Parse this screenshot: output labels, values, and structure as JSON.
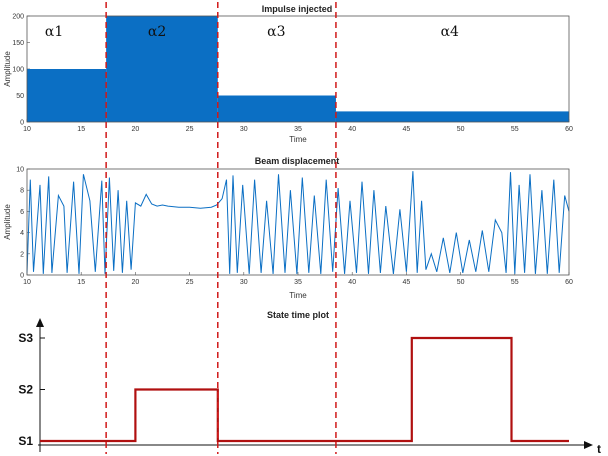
{
  "colors": {
    "signal": "#0b6fc4",
    "state": "#b01010",
    "divider": "#d01818",
    "axis": "#555555"
  },
  "chart_data": [
    {
      "type": "area",
      "title": "Impulse injected",
      "xlabel": "Time",
      "ylabel": "Amplitude",
      "xlim": [
        10,
        60
      ],
      "ylim": [
        0,
        200
      ],
      "xticks": [
        10,
        15,
        20,
        25,
        30,
        35,
        40,
        45,
        50,
        55,
        60
      ],
      "yticks": [
        0,
        50,
        100,
        150,
        200
      ],
      "series": [
        {
          "segments": [
            {
              "x0": 10,
              "x1": 17.3,
              "value": 100
            },
            {
              "x0": 17.3,
              "x1": 27.6,
              "value": 210
            },
            {
              "x0": 27.6,
              "x1": 38.5,
              "value": 50
            },
            {
              "x0": 38.5,
              "x1": 60,
              "value": 20
            }
          ]
        }
      ],
      "regions": [
        {
          "label": "α1",
          "x": 12.5
        },
        {
          "label": "α2",
          "x": 22
        },
        {
          "label": "α3",
          "x": 33
        },
        {
          "label": "α4",
          "x": 49
        }
      ]
    },
    {
      "type": "line",
      "title": "Beam displacement",
      "xlabel": "Time",
      "ylabel": "Amplitude",
      "xlim": [
        10,
        60
      ],
      "ylim": [
        0,
        10
      ],
      "xticks": [
        10,
        15,
        20,
        25,
        30,
        35,
        40,
        45,
        50,
        55,
        60
      ],
      "yticks": [
        0,
        2,
        4,
        6,
        8,
        10
      ],
      "series": [
        {
          "x": [
            10,
            10.3,
            10.6,
            11.2,
            11.5,
            12.0,
            12.3,
            12.9,
            13.4,
            13.7,
            14.3,
            14.8,
            15.2,
            15.8,
            16.3,
            16.9,
            17.2,
            17.6,
            18.0,
            18.4,
            18.8,
            19.2,
            19.6,
            20.0,
            20.5,
            21.0,
            21.5,
            22.0,
            22.5,
            23.0,
            24.0,
            25.0,
            26.0,
            27.0,
            27.5,
            28.0,
            28.4,
            28.7,
            29.0,
            29.4,
            29.9,
            30.5,
            31.0,
            31.6,
            32.1,
            32.7,
            33.2,
            33.8,
            34.3,
            34.9,
            35.4,
            36.0,
            36.5,
            37.1,
            37.6,
            38.2,
            38.7,
            39.3,
            39.8,
            40.4,
            40.9,
            41.5,
            42.0,
            42.6,
            43.1,
            43.8,
            44.4,
            45.0,
            45.6,
            46.0,
            46.4,
            46.8,
            47.3,
            47.8,
            48.4,
            49.0,
            49.6,
            50.2,
            50.8,
            51.4,
            52.0,
            52.6,
            53.2,
            53.8,
            54.2,
            54.6,
            55.0,
            55.4,
            55.9,
            56.4,
            56.9,
            57.5,
            58.0,
            58.6,
            59.1,
            59.6,
            60.0
          ],
          "values": [
            0.2,
            9.0,
            0.3,
            8.5,
            0.1,
            9.3,
            0.2,
            7.5,
            6.5,
            0.2,
            8.8,
            0.1,
            9.5,
            7.0,
            0.3,
            8.9,
            0.1,
            9.2,
            0.4,
            8.0,
            0.2,
            7.0,
            0.5,
            6.8,
            6.5,
            7.6,
            6.7,
            6.5,
            6.6,
            6.5,
            6.4,
            6.4,
            6.3,
            6.4,
            6.6,
            7.2,
            9.0,
            0.1,
            9.4,
            0.2,
            8.5,
            0.1,
            9.0,
            0.2,
            7.0,
            0.1,
            9.5,
            0.2,
            8.0,
            0.1,
            9.2,
            0.2,
            7.5,
            0.1,
            9.0,
            0.3,
            8.2,
            0.1,
            7.0,
            0.2,
            8.8,
            0.1,
            8.0,
            0.2,
            6.5,
            0.1,
            6.2,
            0.3,
            9.8,
            0.2,
            7.0,
            0.5,
            2.0,
            0.3,
            3.5,
            0.2,
            4.0,
            0.2,
            3.3,
            0.3,
            4.2,
            0.3,
            5.2,
            4.0,
            0.2,
            9.7,
            0.1,
            8.5,
            0.2,
            9.5,
            0.1,
            8.0,
            0.1,
            9.0,
            0.2,
            7.5,
            6.0
          ]
        }
      ]
    },
    {
      "type": "line",
      "title": "State time plot",
      "xlabel": "t",
      "ylabel": "",
      "xlim": [
        10,
        60
      ],
      "yticklabels": [
        "S1",
        "S2",
        "S3"
      ],
      "series": [
        {
          "x": [
            10,
            20,
            20,
            27.6,
            27.6,
            45.5,
            45.5,
            54.7,
            54.7,
            60
          ],
          "values": [
            "S1",
            "S1",
            "S2",
            "S2",
            "S1",
            "S1",
            "S3",
            "S3",
            "S1",
            "S1"
          ]
        }
      ]
    }
  ],
  "boundaries": [
    17.3,
    27.6,
    38.5
  ]
}
